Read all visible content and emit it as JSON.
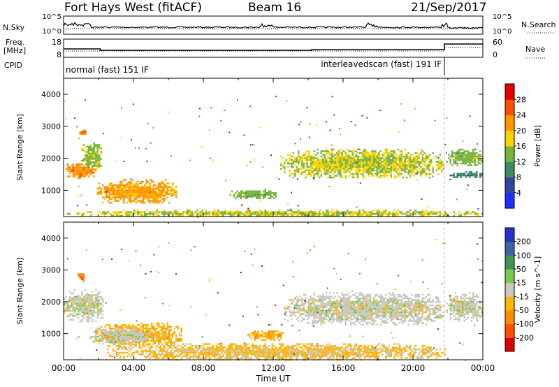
{
  "header": {
    "title": "Fort Hays West (fitACF)",
    "beam": "Beam 16",
    "date": "21/Sep/2017"
  },
  "panels": {
    "nsky_label": "N.Sky",
    "nsky_ticks": [
      "10^5",
      "10^0"
    ],
    "nsearch_label": "N.Search",
    "nsearch_ticks": [
      "10^5",
      "10^0"
    ],
    "freq_label": "Freq.",
    "freq_unit": "[MHz]",
    "freq_ticks": [
      "18",
      "8"
    ],
    "nave_label": "Nave",
    "nave_ticks": [
      "60",
      "0"
    ],
    "cpid_label": "CPID",
    "cpid_segments": [
      {
        "name": "normal (fast) 151 IF",
        "start": 0.0,
        "end": 21.8
      },
      {
        "name": "interleavedscan (fast) 191 IF",
        "start": 21.8,
        "end": 24.0
      }
    ]
  },
  "chart_data": [
    {
      "type": "heatmap",
      "title": "",
      "xlabel": "",
      "ylabel": "Slant Range [km]",
      "xlim": [
        0,
        24
      ],
      "ylim": [
        180,
        4500
      ],
      "y_ticks": [
        1000,
        2000,
        3000,
        4000
      ],
      "colorbar": {
        "label": "Power [dB]",
        "ticks": [
          "4",
          "8",
          "12",
          "16",
          "20",
          "24",
          "28"
        ],
        "range": [
          0,
          30
        ],
        "colors": [
          "#1e32ff",
          "#3246a0",
          "#3c8c64",
          "#78b43c",
          "#ffd200",
          "#ff9600",
          "#ff5000",
          "#e60000"
        ]
      },
      "echo_regions": [
        {
          "t0": 0.0,
          "t1": 1.9,
          "r0": 1400,
          "r1": 1900,
          "level": 21
        },
        {
          "t0": 1.0,
          "t1": 2.2,
          "r0": 1700,
          "r1": 2500,
          "level": 14
        },
        {
          "t0": 0.9,
          "t1": 1.3,
          "r0": 2700,
          "r1": 2950,
          "level": 22
        },
        {
          "t0": 1.9,
          "t1": 6.5,
          "r0": 600,
          "r1": 1350,
          "level": 20
        },
        {
          "t0": 9.5,
          "t1": 12.3,
          "r0": 750,
          "r1": 1050,
          "level": 13
        },
        {
          "t0": 12.4,
          "t1": 21.8,
          "r0": 1400,
          "r1": 2300,
          "level": 15
        },
        {
          "t0": 21.9,
          "t1": 24.0,
          "r0": 1800,
          "r1": 2300,
          "level": 13
        },
        {
          "t0": 22.0,
          "t1": 24.0,
          "r0": 1400,
          "r1": 1600,
          "level": 9
        },
        {
          "t0": 0.0,
          "t1": 24.0,
          "r0": 200,
          "r1": 400,
          "level": 15
        }
      ]
    },
    {
      "type": "heatmap",
      "title": "",
      "xlabel": "Time UT",
      "ylabel": "Slant Range [km]",
      "xlim": [
        0,
        24
      ],
      "ylim": [
        180,
        4500
      ],
      "x_ticks": [
        "00:00",
        "04:00",
        "08:00",
        "12:00",
        "16:00",
        "20:00",
        "00:00"
      ],
      "y_ticks": [
        1000,
        2000,
        3000,
        4000
      ],
      "colorbar": {
        "label": "Velocity [m s^-1]",
        "ticks": [
          "200",
          "100",
          "50",
          "15",
          "-15",
          "-50",
          "-100",
          "-200"
        ],
        "range": [
          -250,
          250
        ],
        "colors": [
          "#dc0000",
          "#ff5000",
          "#ff8c00",
          "#ffb400",
          "#c8c8c0",
          "#78c850",
          "#3c9650",
          "#3c64a0",
          "#2832c8"
        ]
      },
      "echo_regions": [
        {
          "t0": 0.0,
          "t1": 2.3,
          "r0": 1400,
          "r1": 2400,
          "level": 0
        },
        {
          "t0": 0.8,
          "t1": 1.2,
          "r0": 2650,
          "r1": 2950,
          "level": -120
        },
        {
          "t0": 1.8,
          "t1": 6.8,
          "r0": 600,
          "r1": 1350,
          "level": -60
        },
        {
          "t0": 1.5,
          "t1": 5.0,
          "r0": 700,
          "r1": 1200,
          "level": 5
        },
        {
          "t0": 10.5,
          "t1": 12.6,
          "r0": 800,
          "r1": 1100,
          "level": -70
        },
        {
          "t0": 12.6,
          "t1": 21.8,
          "r0": 1300,
          "r1": 2300,
          "level": 0
        },
        {
          "t0": 21.9,
          "t1": 24.0,
          "r0": 1400,
          "r1": 2300,
          "level": 0
        },
        {
          "t0": 2.5,
          "t1": 22.0,
          "r0": 200,
          "r1": 700,
          "level": -40
        }
      ]
    }
  ]
}
